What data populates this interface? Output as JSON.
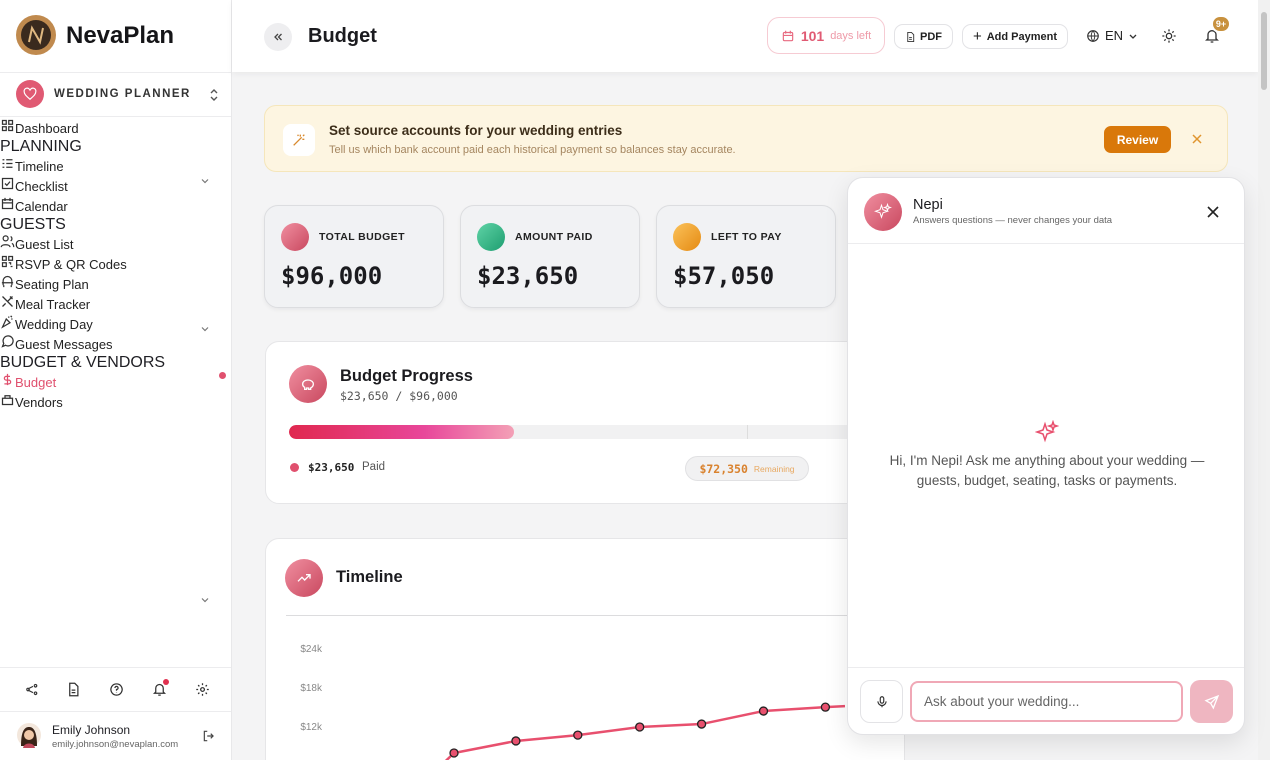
{
  "brand": "NevaPlan",
  "workspace": "WEDDING PLANNER",
  "nav": {
    "dashboard": "Dashboard",
    "sections": [
      {
        "title": "PLANNING",
        "items": [
          "Timeline",
          "Checklist",
          "Calendar"
        ]
      },
      {
        "title": "GUESTS",
        "items": [
          "Guest List",
          "RSVP & QR Codes",
          "Seating Plan",
          "Meal Tracker",
          "Wedding Day",
          "Guest Messages"
        ]
      },
      {
        "title": "BUDGET & VENDORS",
        "items": [
          "Budget",
          "Vendors"
        ]
      }
    ]
  },
  "user": {
    "name": "Emily Johnson",
    "email": "emily.johnson@nevaplan.com"
  },
  "header": {
    "title": "Budget",
    "days_count": "101",
    "days_label": "days left",
    "pdf": "PDF",
    "add_payment": "Add Payment",
    "language": "EN",
    "notifications": "9+"
  },
  "banner": {
    "title": "Set source accounts for your wedding entries",
    "text": "Tell us which bank account paid each historical payment so balances stay accurate.",
    "button": "Review"
  },
  "stats": [
    {
      "label": "TOTAL BUDGET",
      "value": "$96,000"
    },
    {
      "label": "AMOUNT PAID",
      "value": "$23,650"
    },
    {
      "label": "LEFT TO PAY",
      "value": "$57,050"
    }
  ],
  "progress": {
    "title": "Budget Progress",
    "subtitle": "$23,650 / $96,000",
    "paid_amount": "$23,650",
    "paid_label": "Paid",
    "remaining_amount": "$72,350",
    "remaining_label": "Remaining"
  },
  "chart_data": {
    "type": "line",
    "title": "Timeline",
    "ylim": [
      0,
      27000
    ],
    "yticks": [
      {
        "value": 24000,
        "label": "$24k"
      },
      {
        "value": 18000,
        "label": "$18k"
      },
      {
        "value": 12000,
        "label": "$12k"
      }
    ],
    "color": "#e8506e",
    "values": [
      7850,
      9700,
      10600,
      11850,
      12300,
      14300,
      14900
    ]
  },
  "assistant": {
    "name": "Nepi",
    "subtitle": "Answers questions — never changes your data",
    "greeting": "Hi, I'm Nepi! Ask me anything about your wedding — guests, budget, seating, tasks or payments.",
    "placeholder": "Ask about your wedding..."
  }
}
